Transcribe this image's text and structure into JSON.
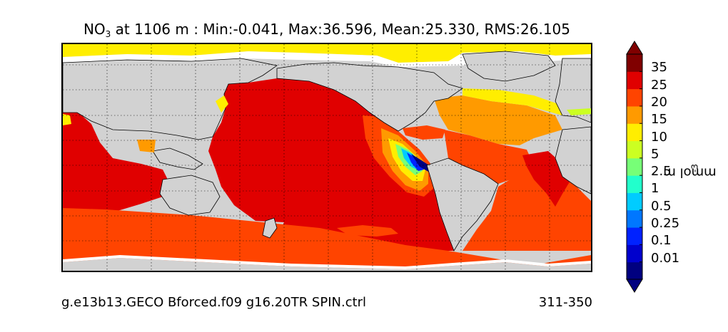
{
  "title": {
    "species_main": "NO",
    "species_sub": "3",
    "rest": " at 1106 m : Min:-0.041, Max:36.596, Mean:25.330, RMS:26.105"
  },
  "footer": {
    "left": "g.e13b13.GECO Bforced.f09 g16.20TR SPIN.ctrl",
    "right": "311-350"
  },
  "colorbar": {
    "label_main": "mmol m",
    "label_sup": "-3",
    "tick_labels": [
      "35",
      "25",
      "20",
      "15",
      "10",
      "5",
      "2.5",
      "1",
      "0.5",
      "0.25",
      "0.1",
      "0.01"
    ],
    "colors": [
      "#000080",
      "#0000cd",
      "#0022ff",
      "#0077ff",
      "#00ccff",
      "#22ffcc",
      "#77ff77",
      "#ccff22",
      "#ffee00",
      "#ff9a00",
      "#ff4400",
      "#e00000",
      "#800000"
    ],
    "extend": "both",
    "orientation": "vertical"
  },
  "map": {
    "projection": "cylindrical",
    "graticule": "dotted",
    "land_color": "#d2d2d2",
    "missing_color": "#ffffff"
  }
}
